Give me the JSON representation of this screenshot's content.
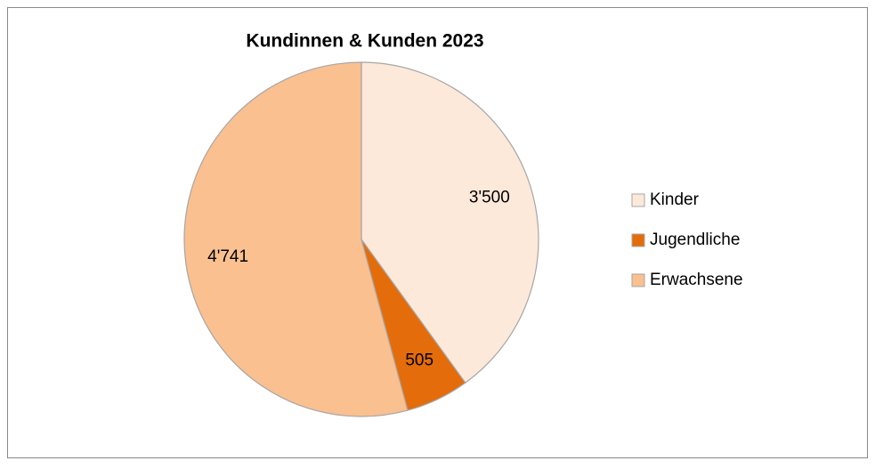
{
  "chart_data": {
    "type": "pie",
    "title": "Kundinnen & Kunden 2023",
    "categories": [
      "Kinder",
      "Jugendliche",
      "Erwachsene"
    ],
    "values": [
      3500,
      505,
      4741
    ],
    "value_labels": [
      "3'500",
      "505",
      "4'741"
    ],
    "colors": [
      "#FDE9D9",
      "#E46C0A",
      "#FAC090"
    ],
    "legend": "right"
  }
}
